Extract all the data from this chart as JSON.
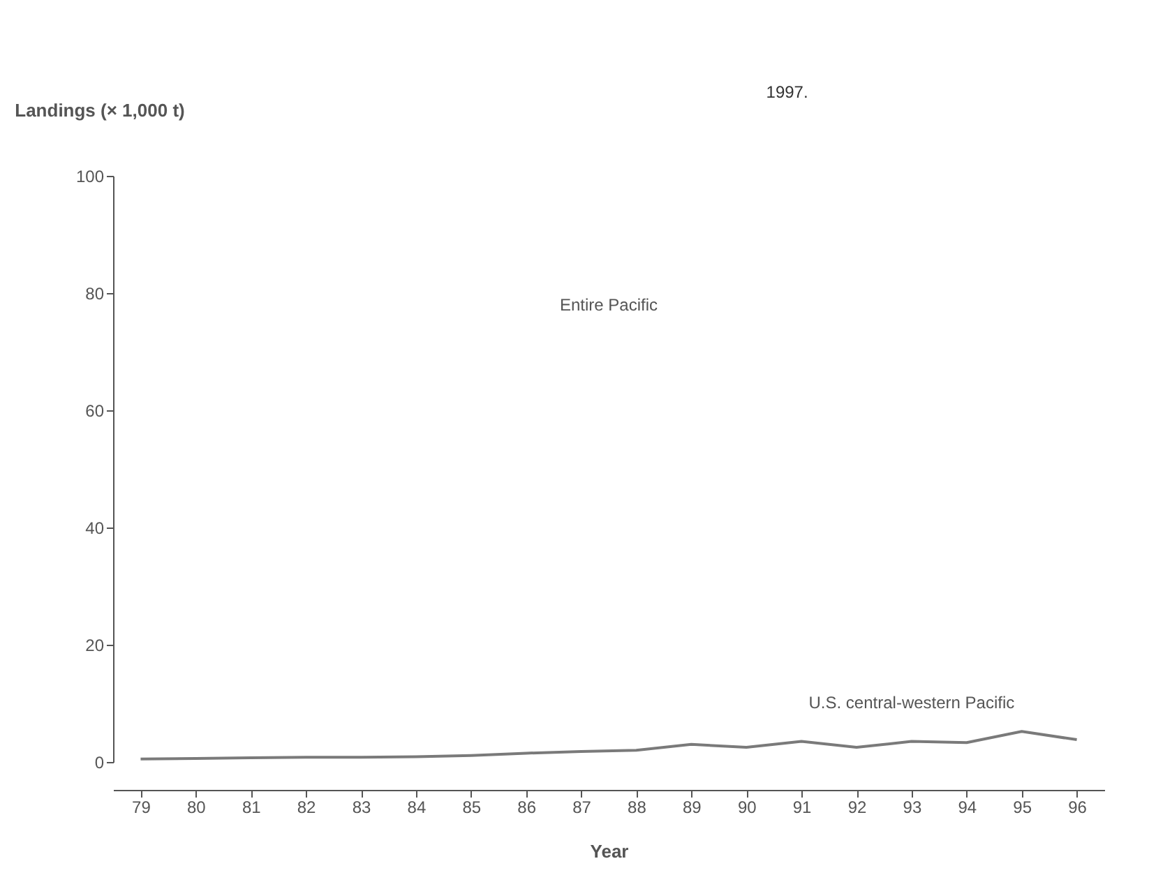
{
  "chart_data": {
    "type": "line",
    "xlabel": "Year",
    "ylabel": "Landings (× 1,000 t)",
    "annotations": [
      "1997.",
      "Entire Pacific"
    ],
    "categories": [
      "79",
      "80",
      "81",
      "82",
      "83",
      "84",
      "85",
      "86",
      "87",
      "88",
      "89",
      "90",
      "91",
      "92",
      "93",
      "94",
      "95",
      "96"
    ],
    "series": [
      {
        "name": "U.S. central-western Pacific",
        "color": "#7a7a7a",
        "values": [
          0.5,
          0.6,
          0.7,
          0.8,
          0.8,
          0.9,
          1.1,
          1.5,
          1.8,
          2.0,
          3.0,
          2.5,
          3.5,
          2.5,
          3.5,
          3.3,
          5.2,
          3.8
        ]
      }
    ],
    "ylim": [
      0,
      100
    ],
    "yticks": [
      0,
      20,
      40,
      60,
      80,
      100
    ],
    "grid": false,
    "marker": "none",
    "line_style": "solid"
  }
}
